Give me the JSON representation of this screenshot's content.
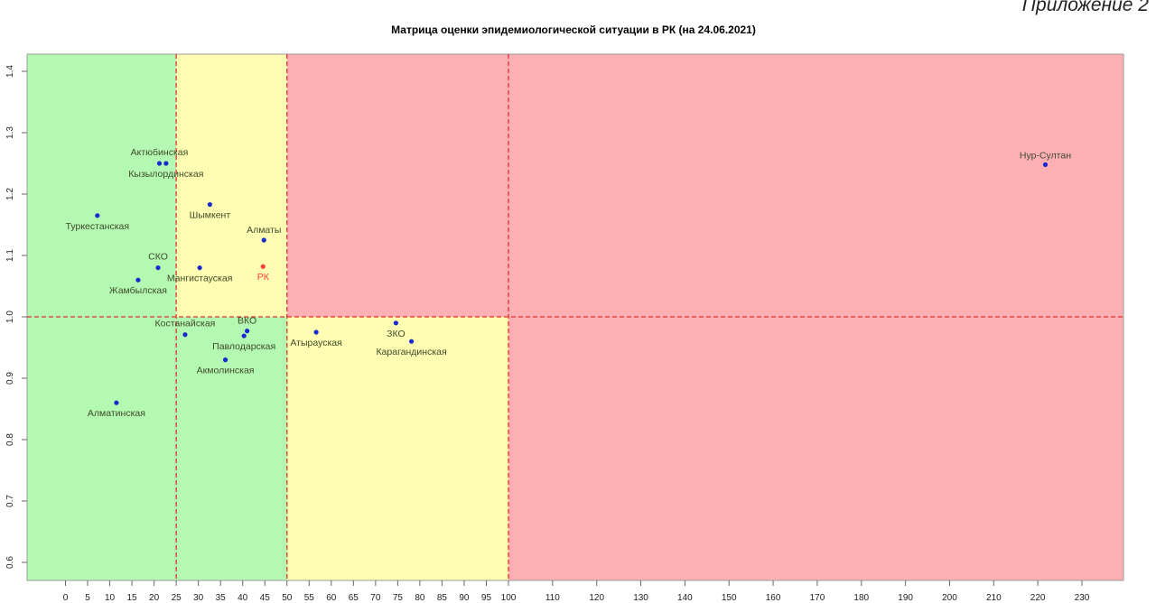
{
  "corner_note": "Приложение 2",
  "chart_data": {
    "type": "scatter",
    "title": "Матрица оценки эпидемиологической ситуации в РК (на 24.06.2021)",
    "xlabel": "",
    "ylabel": "",
    "x_ticks": [
      0,
      5,
      10,
      15,
      20,
      25,
      30,
      35,
      40,
      45,
      50,
      55,
      60,
      65,
      70,
      75,
      80,
      85,
      90,
      95,
      100,
      110,
      120,
      130,
      140,
      150,
      160,
      170,
      180,
      190,
      200,
      210,
      220,
      230
    ],
    "y_ticks": [
      0.6,
      0.7,
      0.8,
      0.9,
      1.0,
      1.1,
      1.2,
      1.3,
      1.4
    ],
    "xlim": [
      -7,
      241
    ],
    "ylim": [
      0.575,
      1.435
    ],
    "x_scale": "piecewise: 0–100 step 5, 100–230 step 10",
    "zones": [
      {
        "name": "green",
        "x_from": -7,
        "x_to": 25,
        "y_from": 1.0,
        "y_to": 1.435,
        "color": "#b4f9b1"
      },
      {
        "name": "green",
        "x_from": -7,
        "x_to": 50,
        "y_from": 0.575,
        "y_to": 1.0,
        "color": "#b4f9b1"
      },
      {
        "name": "yellow",
        "x_from": 25,
        "x_to": 50,
        "y_from": 1.0,
        "y_to": 1.435,
        "color": "#fefdb1"
      },
      {
        "name": "yellow",
        "x_from": 50,
        "x_to": 100,
        "y_from": 0.575,
        "y_to": 1.0,
        "color": "#fefdb1"
      },
      {
        "name": "red",
        "x_from": 50,
        "x_to": 241,
        "y_from": 1.0,
        "y_to": 1.435,
        "color": "#fdb0b3"
      },
      {
        "name": "red",
        "x_from": 100,
        "x_to": 241,
        "y_from": 0.575,
        "y_to": 1.0,
        "color": "#fdb0b3"
      }
    ],
    "threshold_lines": {
      "x": [
        25,
        50,
        100
      ],
      "y": [
        1.0
      ],
      "color": "#e03030",
      "style": "dashed"
    },
    "point_color": "#1a2ad0",
    "highlight_color": "#ff4040",
    "points": [
      {
        "label": "Актюбинская",
        "x": 21.2,
        "y": 1.25
      },
      {
        "label": "Кызылординская",
        "x": 22.7,
        "y": 1.25
      },
      {
        "label": "Туркестанская",
        "x": 7.2,
        "y": 1.165
      },
      {
        "label": "Шымкент",
        "x": 32.6,
        "y": 1.183
      },
      {
        "label": "Алматы",
        "x": 44.8,
        "y": 1.125
      },
      {
        "label": "СКО",
        "x": 20.9,
        "y": 1.08
      },
      {
        "label": "Мангистауская",
        "x": 30.3,
        "y": 1.08
      },
      {
        "label": "РК",
        "x": 44.6,
        "y": 1.082,
        "highlight": true
      },
      {
        "label": "Жамбылская",
        "x": 16.4,
        "y": 1.06
      },
      {
        "label": "Нур-Султан",
        "x": 221.7,
        "y": 1.248
      },
      {
        "label": "ВКО",
        "x": 41.0,
        "y": 0.977
      },
      {
        "label": "Костанайская",
        "x": 27.0,
        "y": 0.971
      },
      {
        "label": "Павлодарская",
        "x": 40.3,
        "y": 0.969
      },
      {
        "label": "Акмолинская",
        "x": 36.1,
        "y": 0.93
      },
      {
        "label": "Алматинская",
        "x": 11.5,
        "y": 0.86
      },
      {
        "label": "Атырауская",
        "x": 56.6,
        "y": 0.975
      },
      {
        "label": "ЗКО",
        "x": 74.6,
        "y": 0.99
      },
      {
        "label": "Карагандинская",
        "x": 78.1,
        "y": 0.96
      }
    ]
  }
}
